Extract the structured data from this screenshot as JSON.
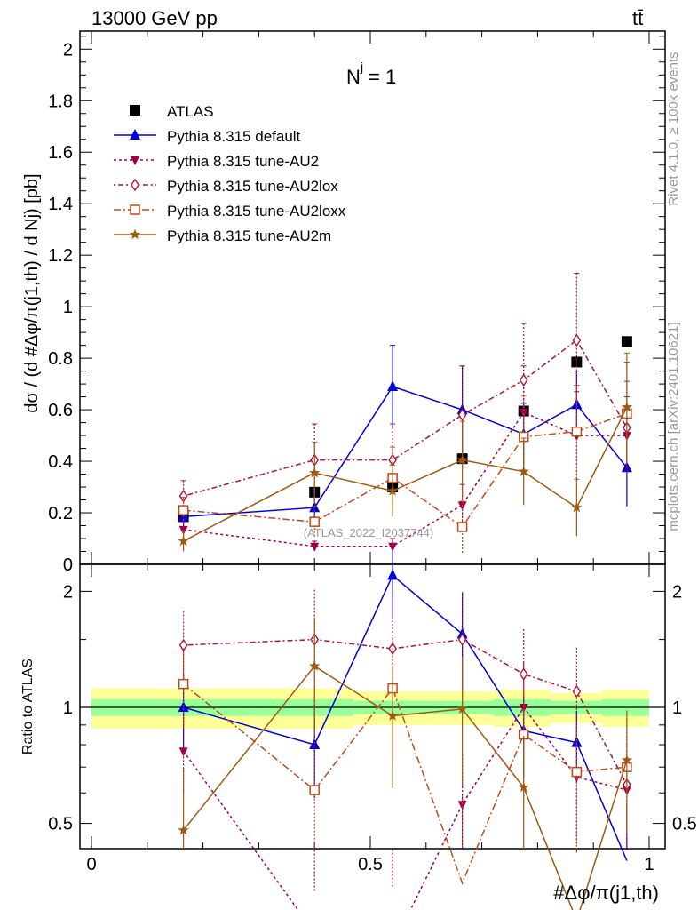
{
  "header": {
    "energy_label": "13000 GeV pp",
    "process_label": "tt̄",
    "njet_label": "N",
    "njet_sup": "j",
    "njet_value": "= 1",
    "watermark": "(ATLAS_2022_I2037744)",
    "rivet_label": "Rivet 4.1.0, ≥ 100k events",
    "mcplots_label": "mcplots.cern.ch [arXiv:2401.10621]"
  },
  "axes": {
    "ylabel_main": "dσ / (d #Δφ/π(j1,th) / d Nj) [pb]",
    "ylabel_ratio": "Ratio to ATLAS",
    "xlabel": "#Δφ/π(j1,th)",
    "main_yticks": [
      "0",
      "0.2",
      "0.4",
      "0.6",
      "0.8",
      "1",
      "1.2",
      "1.4",
      "1.6",
      "1.8",
      "2"
    ],
    "ratio_yticks": [
      "0.5",
      "1",
      "2"
    ],
    "xticks": [
      "0",
      "0.5",
      "1"
    ]
  },
  "legend": [
    {
      "label": "ATLAS",
      "color": "#000000"
    },
    {
      "label": "Pythia 8.315 default",
      "color": "#0000dd"
    },
    {
      "label": "Pythia 8.315 tune-AU2",
      "color": "#a0004a"
    },
    {
      "label": "Pythia 8.315 tune-AU2lox",
      "color": "#b0103a"
    },
    {
      "label": "Pythia 8.315 tune-AU2loxx",
      "color": "#c04a1a"
    },
    {
      "label": "Pythia 8.315 tune-AU2m",
      "color": "#a05a10"
    }
  ],
  "chart_data": {
    "type": "scatter",
    "title": "N^j = 1",
    "xlabel": "#Δφ/π(j1,th)",
    "ylabel": "dσ / (d #Δφ/π(j1,th) / d Nj) [pb]",
    "xlim": [
      0,
      1
    ],
    "ylim": [
      0,
      2.07
    ],
    "ratio_ylim": [
      0.43,
      2.35
    ],
    "x": [
      0.165,
      0.4,
      0.54,
      0.665,
      0.775,
      0.87,
      0.96
    ],
    "series": [
      {
        "name": "ATLAS",
        "values": [
          0.185,
          0.28,
          0.3,
          0.41,
          0.595,
          0.785,
          0.865
        ],
        "ratio": [
          1,
          1,
          1,
          1,
          1,
          1,
          1
        ]
      },
      {
        "name": "Pythia 8.315 default",
        "values": [
          0.185,
          0.22,
          0.69,
          0.6,
          0.505,
          0.62,
          0.375
        ],
        "errors": [
          0.04,
          0.06,
          0.16,
          0.17,
          0.12,
          0.13,
          0.15
        ],
        "ratio": [
          1.0,
          0.8,
          2.2,
          1.55,
          0.87,
          0.81,
          0.4
        ]
      },
      {
        "name": "Pythia 8.315 tune-AU2",
        "values": [
          0.135,
          0.07,
          0.07,
          0.23,
          0.59,
          0.5,
          0.5
        ],
        "errors": [
          0.03,
          0.02,
          0.03,
          0.08,
          0.18,
          0.17,
          0.15
        ],
        "ratio": [
          0.77,
          0.26,
          0.24,
          0.56,
          1.0,
          0.66,
          0.61
        ]
      },
      {
        "name": "Pythia 8.315 tune-AU2lox",
        "values": [
          0.265,
          0.405,
          0.405,
          0.58,
          0.715,
          0.87,
          0.53
        ],
        "errors": [
          0.06,
          0.14,
          0.14,
          0.19,
          0.22,
          0.26,
          0.18
        ],
        "ratio": [
          1.45,
          1.5,
          1.42,
          1.5,
          1.22,
          1.1,
          0.63
        ]
      },
      {
        "name": "Pythia 8.315 tune-AU2loxx",
        "values": [
          0.21,
          0.165,
          0.335,
          0.145,
          0.495,
          0.515,
          0.585
        ],
        "errors": [
          0.05,
          0.06,
          0.12,
          0.1,
          0.16,
          0.18,
          0.2
        ],
        "ratio": [
          1.15,
          0.61,
          1.12,
          0.35,
          0.85,
          0.68,
          0.7
        ]
      },
      {
        "name": "Pythia 8.315 tune-AU2m",
        "values": [
          0.09,
          0.355,
          0.285,
          0.405,
          0.36,
          0.22,
          0.61
        ],
        "errors": [
          0.04,
          0.12,
          0.1,
          0.15,
          0.13,
          0.11,
          0.21
        ],
        "ratio": [
          0.48,
          1.28,
          0.95,
          0.99,
          0.62,
          0.28,
          0.73
        ]
      }
    ],
    "ratio_band_inner": [
      0.05,
      0.05,
      0.04,
      0.04,
      0.05,
      0.04,
      0.05
    ],
    "ratio_band_outer": [
      0.12,
      0.12,
      0.1,
      0.1,
      0.11,
      0.09,
      0.11
    ]
  }
}
